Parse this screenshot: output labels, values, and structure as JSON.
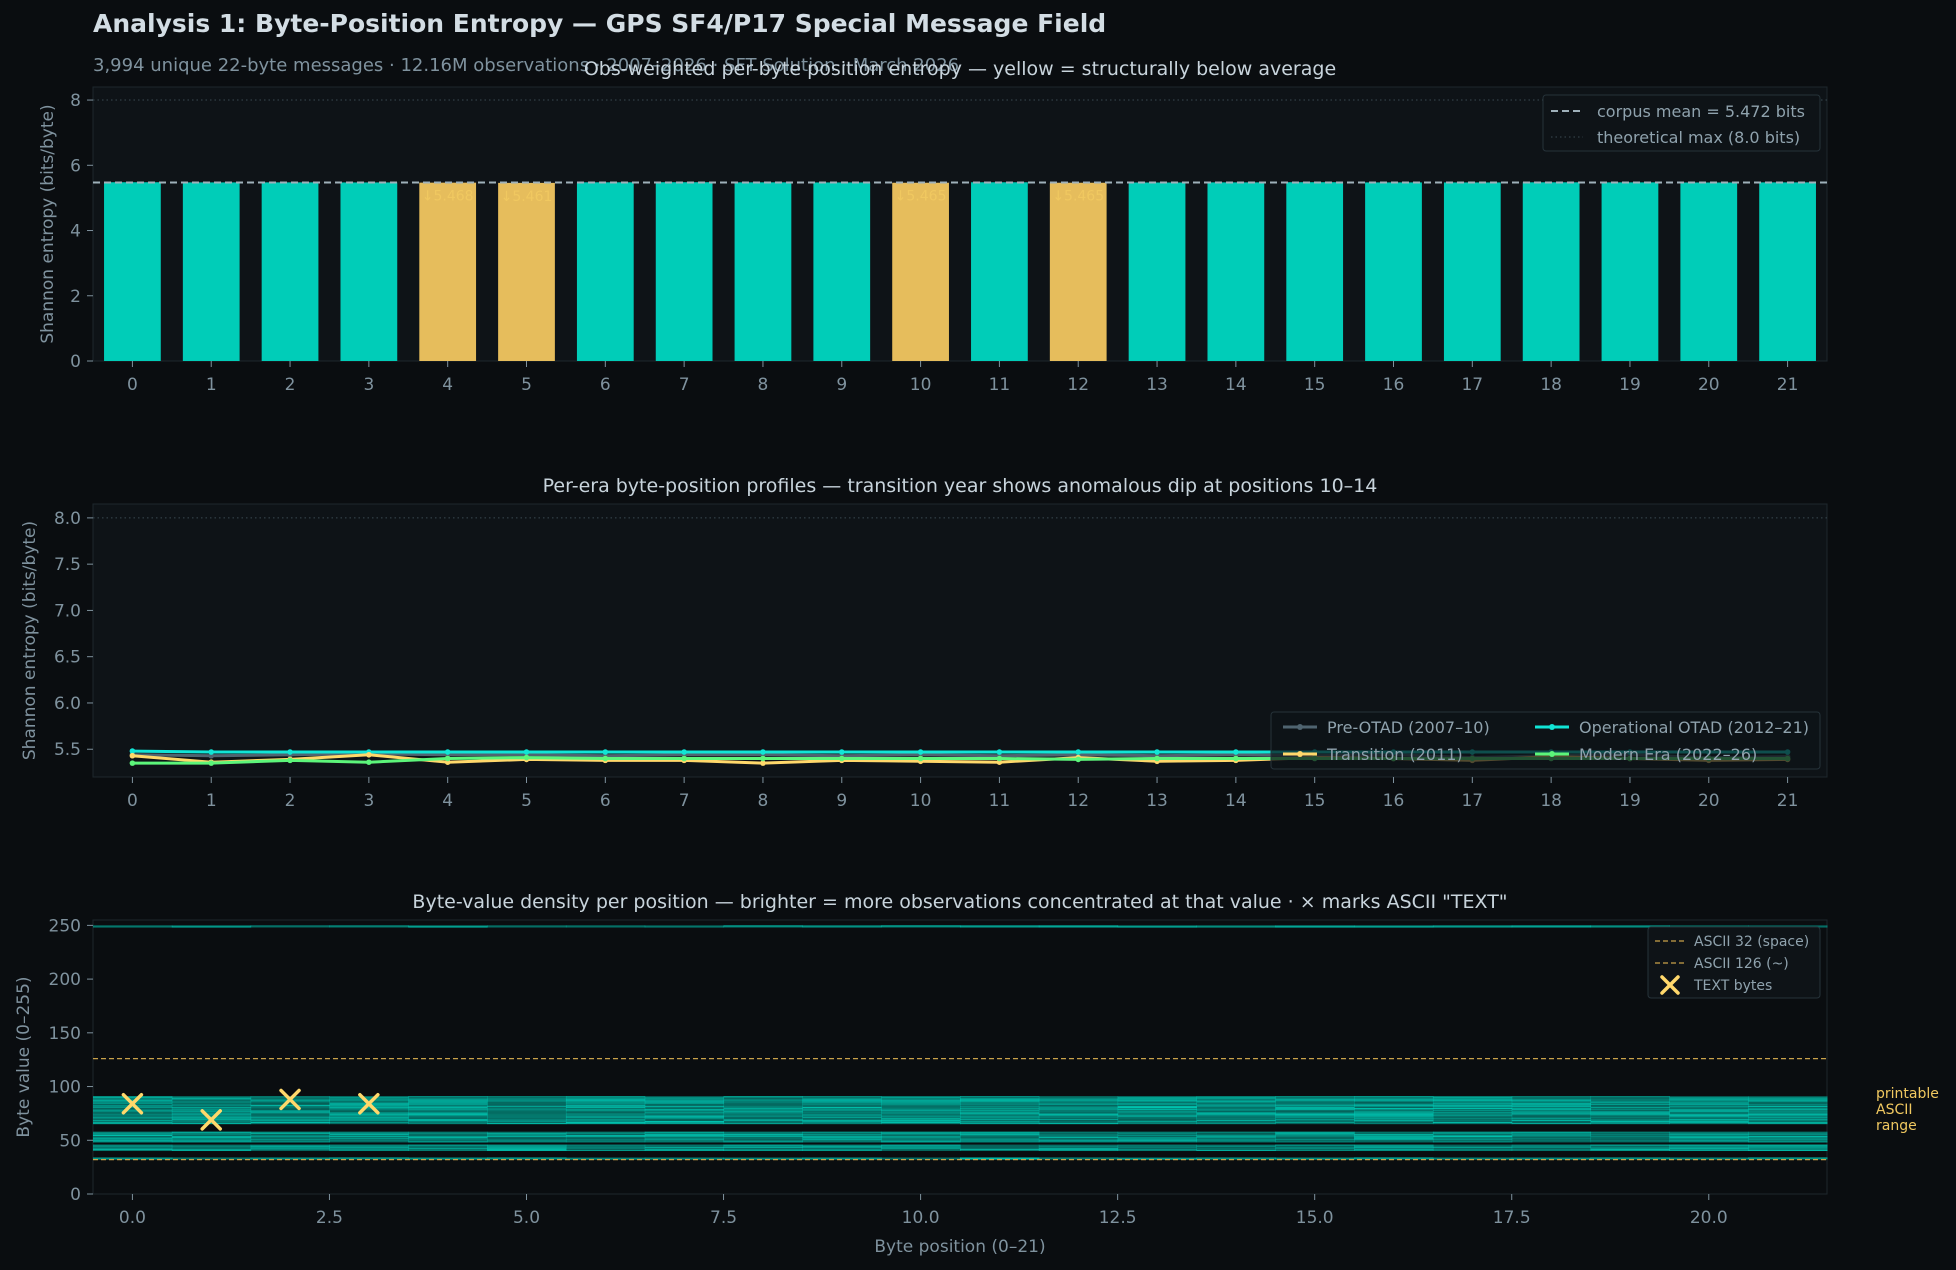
{
  "header": {
    "title": "Analysis 1: Byte-Position Entropy — GPS SF4/P17 Special Message Field",
    "subtitle": "3,994 unique 22-byte messages · 12.16M observations · 2007–2026 · SFT Solution · March 2026"
  },
  "colors": {
    "background": "#0a0d10",
    "panel": "#0e1317",
    "teal": "#00cdb8",
    "yellow": "#e6bd5c",
    "pre_otad": "#4f6470",
    "transition": "#ffd86b",
    "operational": "#11e5d6",
    "modern": "#5cf57a"
  },
  "chart_data": [
    {
      "id": "bar",
      "type": "bar",
      "title": "Obs-weighted per-byte position entropy — yellow = structurally below average",
      "ylabel": "Shannon entropy (bits/byte)",
      "xlabel": "",
      "ylim": [
        0,
        8.4
      ],
      "yticks": [
        0,
        2,
        4,
        6,
        8
      ],
      "categories": [
        "0",
        "1",
        "2",
        "3",
        "4",
        "5",
        "6",
        "7",
        "8",
        "9",
        "10",
        "11",
        "12",
        "13",
        "14",
        "15",
        "16",
        "17",
        "18",
        "19",
        "20",
        "21"
      ],
      "values": [
        5.48,
        5.475,
        5.476,
        5.474,
        5.468,
        5.461,
        5.478,
        5.481,
        5.477,
        5.474,
        5.465,
        5.479,
        5.465,
        5.472,
        5.476,
        5.481,
        5.475,
        5.474,
        5.478,
        5.476,
        5.472,
        5.476
      ],
      "below_average": [
        4,
        5,
        10,
        12
      ],
      "annotations": [
        {
          "index": 4,
          "text": "↓5.468"
        },
        {
          "index": 5,
          "text": "↓5.461"
        },
        {
          "index": 10,
          "text": "↓5.465"
        },
        {
          "index": 12,
          "text": "↓5.465"
        }
      ],
      "mean": 5.472,
      "theoretical_max": 8.0,
      "grid": false,
      "legend_position": "top-right",
      "legend": [
        "corpus mean = 5.472 bits",
        "theoretical max (8.0 bits)"
      ]
    },
    {
      "id": "line",
      "type": "line",
      "title": "Per-era byte-position profiles — transition year shows anomalous dip at positions 10–14",
      "ylabel": "Shannon entropy (bits/byte)",
      "xlabel": "",
      "ylim": [
        5.2,
        8.15
      ],
      "yticks": [
        5.5,
        6.0,
        6.5,
        7.0,
        7.5,
        8.0
      ],
      "yticklabels": [
        "5.5",
        "6.0",
        "6.5",
        "7.0",
        "7.5",
        "8.0"
      ],
      "max_line": 8.0,
      "x": [
        0,
        1,
        2,
        3,
        4,
        5,
        6,
        7,
        8,
        9,
        10,
        11,
        12,
        13,
        14,
        15,
        16,
        17,
        18,
        19,
        20,
        21
      ],
      "xticklabels": [
        "0",
        "1",
        "2",
        "3",
        "4",
        "5",
        "6",
        "7",
        "8",
        "9",
        "10",
        "11",
        "12",
        "13",
        "14",
        "15",
        "16",
        "17",
        "18",
        "19",
        "20",
        "21"
      ],
      "legend_position": "lower-right",
      "series": [
        {
          "name": "Pre-OTAD (2007–10)",
          "color": "#4f6470",
          "values": [
            5.44,
            5.43,
            5.44,
            5.45,
            5.44,
            5.44,
            5.43,
            5.44,
            5.44,
            5.43,
            5.44,
            5.43,
            5.44,
            5.43,
            5.44,
            5.43,
            5.44,
            5.41,
            5.43,
            5.44,
            5.41,
            5.42
          ]
        },
        {
          "name": "Operational OTAD (2012–21)",
          "color": "#11e5d6",
          "values": [
            5.48,
            5.47,
            5.47,
            5.47,
            5.47,
            5.47,
            5.47,
            5.47,
            5.47,
            5.47,
            5.47,
            5.47,
            5.47,
            5.47,
            5.47,
            5.47,
            5.47,
            5.47,
            5.47,
            5.47,
            5.47,
            5.47
          ]
        },
        {
          "name": "Transition (2011)",
          "color": "#ffd86b",
          "values": [
            5.43,
            5.36,
            5.39,
            5.44,
            5.36,
            5.39,
            5.38,
            5.38,
            5.35,
            5.38,
            5.37,
            5.36,
            5.41,
            5.37,
            5.38,
            5.41,
            5.4,
            5.38,
            5.42,
            5.4,
            5.38,
            5.39
          ]
        },
        {
          "name": "Modern Era (2022–26)",
          "color": "#5cf57a",
          "values": [
            5.35,
            5.35,
            5.38,
            5.36,
            5.4,
            5.41,
            5.4,
            5.4,
            5.4,
            5.4,
            5.4,
            5.4,
            5.39,
            5.4,
            5.4,
            5.4,
            5.4,
            5.4,
            5.4,
            5.4,
            5.4,
            5.4
          ]
        }
      ]
    },
    {
      "id": "heat",
      "type": "heatmap",
      "title": "Byte-value density per position — brighter = more observations concentrated at that value · × marks ASCII \"TEXT\"",
      "xlabel": "Byte position (0–21)",
      "ylabel": "Byte value (0–255)",
      "xlim": [
        -0.5,
        21.5
      ],
      "ylim": [
        0,
        255
      ],
      "xticks": [
        0,
        2.5,
        5,
        7.5,
        10,
        12.5,
        15,
        17.5,
        20
      ],
      "xticklabels": [
        "0.0",
        "2.5",
        "5.0",
        "7.5",
        "10.0",
        "12.5",
        "15.0",
        "17.5",
        "20.0"
      ],
      "yticks": [
        0,
        50,
        100,
        150,
        200,
        250
      ],
      "yticklabels": [
        "0",
        "50",
        "100",
        "150",
        "200",
        "250"
      ],
      "bands": [
        [
          32,
          33
        ],
        [
          40,
          45
        ],
        [
          48,
          57
        ],
        [
          65,
          90
        ],
        [
          248,
          249
        ]
      ],
      "ascii_lines": [
        32,
        126
      ],
      "text_bytes": [
        {
          "position": 0,
          "value": 84
        },
        {
          "position": 1,
          "value": 69
        },
        {
          "position": 2,
          "value": 88
        },
        {
          "position": 3,
          "value": 84
        }
      ],
      "side_note": [
        "printable",
        "ASCII",
        "range"
      ],
      "legend_position": "top-right",
      "legend": [
        "ASCII 32 (space)",
        "ASCII 126 (~)",
        "TEXT bytes"
      ]
    }
  ]
}
